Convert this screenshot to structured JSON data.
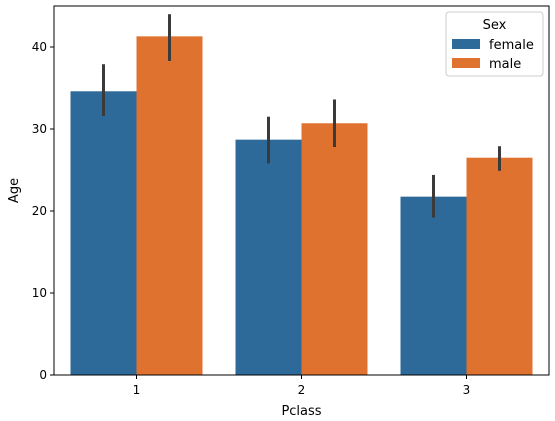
{
  "chart_data": {
    "type": "bar",
    "xlabel": "Pclass",
    "ylabel": "Age",
    "categories": [
      "1",
      "2",
      "3"
    ],
    "ylim": [
      0,
      45
    ],
    "yticks": [
      0,
      10,
      20,
      30,
      40
    ],
    "grid": false,
    "legend": {
      "title": "Sex",
      "placement": "top-right"
    },
    "series": [
      {
        "name": "female",
        "color": "#2d6a99",
        "values": [
          34.6,
          28.7,
          21.75
        ],
        "error_low": [
          31.6,
          25.8,
          19.2
        ],
        "error_high": [
          37.9,
          31.5,
          24.4
        ]
      },
      {
        "name": "male",
        "color": "#e07230",
        "values": [
          41.3,
          30.7,
          26.5
        ],
        "error_low": [
          38.3,
          27.8,
          24.9
        ],
        "error_high": [
          44.0,
          33.6,
          27.9
        ]
      }
    ]
  }
}
